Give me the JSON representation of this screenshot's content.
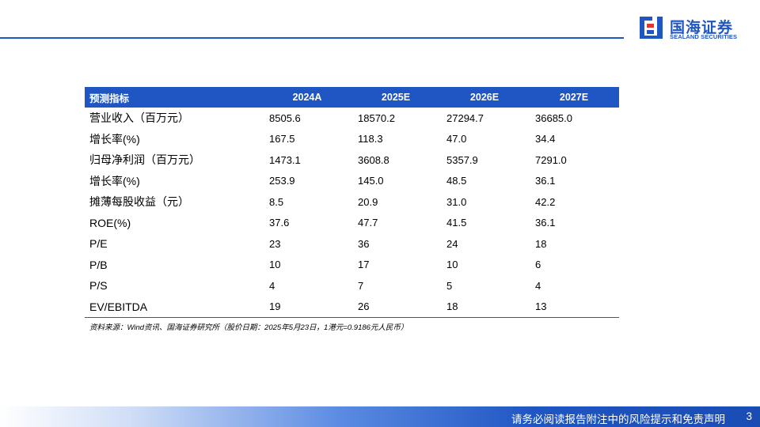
{
  "brand": {
    "name_cn": "国海证券",
    "name_en": "SEALAND SECURITIES",
    "color": "#1f56c3",
    "logo_icon": "sealand-logo-icon"
  },
  "table": {
    "header": {
      "label": "预测指标",
      "years": [
        "2024A",
        "2025E",
        "2026E",
        "2027E"
      ]
    },
    "rows": [
      {
        "label": "营业收入（百万元）",
        "values": [
          "8505.6",
          "18570.2",
          "27294.7",
          "36685.0"
        ]
      },
      {
        "label": "增长率(%)",
        "values": [
          "167.5",
          "118.3",
          "47.0",
          "34.4"
        ]
      },
      {
        "label": "归母净利润（百万元）",
        "values": [
          "1473.1",
          "3608.8",
          "5357.9",
          "7291.0"
        ]
      },
      {
        "label": "增长率(%)",
        "values": [
          "253.9",
          "145.0",
          "48.5",
          "36.1"
        ]
      },
      {
        "label": "摊薄每股收益（元）",
        "values": [
          "8.5",
          "20.9",
          "31.0",
          "42.2"
        ]
      },
      {
        "label": "ROE(%)",
        "values": [
          "37.6",
          "47.7",
          "41.5",
          "36.1"
        ]
      },
      {
        "label": "P/E",
        "values": [
          "23",
          "36",
          "24",
          "18"
        ]
      },
      {
        "label": "P/B",
        "values": [
          "10",
          "17",
          "10",
          "6"
        ]
      },
      {
        "label": "P/S",
        "values": [
          "4",
          "7",
          "5",
          "4"
        ]
      },
      {
        "label": "EV/EBITDA",
        "values": [
          "19",
          "26",
          "18",
          "13"
        ]
      }
    ]
  },
  "source_note": "资料来源：Wind资讯、国海证券研究所（股价日期：2025年5月23日，1港元=0.9186元人民币）",
  "footer": {
    "disclaimer": "请务必阅读报告附注中的风险提示和免责声明",
    "page_number": "3"
  }
}
